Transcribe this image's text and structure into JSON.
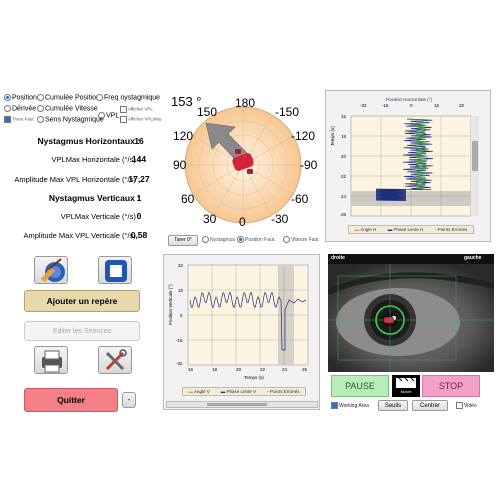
{
  "options": {
    "row1": [
      "Position",
      "Cumulée Position",
      "Freq nystagmique"
    ],
    "row2": [
      "Dérivée",
      "Cumulée Vitesse"
    ],
    "trace": "Trace Faut",
    "sens": "Sens Nystagmique",
    "vpl": "VPL",
    "aff_vpl": "Afficher VPL",
    "aff_vplmoy": "Afficher VPLMoy"
  },
  "stats": {
    "nh_label": "Nystagmus Horizontaux :",
    "nh_value": "16",
    "vplh_label": "VPLMax Horizontale (°/s) :",
    "vplh_value": "144",
    "amph_label": "Amplitude Max VPL Horizontale (°/s) :",
    "amph_value": "17,27",
    "nv_label": "Nystagmus Verticaux :",
    "nv_value": "1",
    "vplv_label": "VPLMax Verticale (°/s) :",
    "vplv_value": "0",
    "ampv_label": "Amplitude Max VPL Verticale (°/s) :",
    "ampv_value": "0,58"
  },
  "buttons": {
    "ajouter": "Ajouter un repère",
    "editer": "Editer les Seances",
    "quitter": "Quitter",
    "tarer": "Tarer 0°",
    "pause": "PAUSE",
    "stop": "STOP",
    "seuils": "Seuils",
    "centrer": "Centrer",
    "minus": "-"
  },
  "polar": {
    "angle": "153 °",
    "labels": [
      "180",
      "-150",
      "150",
      "-120",
      "120",
      "-90",
      "90",
      "-60",
      "60",
      "-30",
      "30",
      "0"
    ]
  },
  "polar_radios": [
    "Nystagmus",
    "Position Faut.",
    "Vitesse Faut"
  ],
  "horiz_chart": {
    "title": "Position Horizontale (°)",
    "xticks": [
      "-32",
      "-16",
      "0",
      "16",
      "32"
    ],
    "yticks": [
      "16",
      "18",
      "20",
      "22",
      "24",
      "26"
    ],
    "ylabel": "Temps (s)",
    "legend": [
      "Angle H",
      "Phase Lente H",
      "Points Erronés"
    ]
  },
  "vert_chart": {
    "ylabel": "Position Verticale (°)",
    "xlabel": "Temps (s)",
    "yticks": [
      "32",
      "16",
      "0",
      "-16",
      "-32"
    ],
    "xticks": [
      "16",
      "18",
      "20",
      "22",
      "24",
      "26"
    ],
    "legend": [
      "Angle V",
      "Phase Lente V",
      "Points Erronés"
    ]
  },
  "video": {
    "droite": "droite",
    "gauche": "gauche",
    "working_area": "Working Area",
    "video": "Vidéo",
    "logo": "Movie"
  },
  "colors": {
    "pause": "#b9ecbb",
    "stop": "#f3a0c8",
    "quitter": "#f47f86",
    "ajouter": "#e8d9ad",
    "arrow": "#8a8a8a",
    "marker": "#d4233a"
  }
}
